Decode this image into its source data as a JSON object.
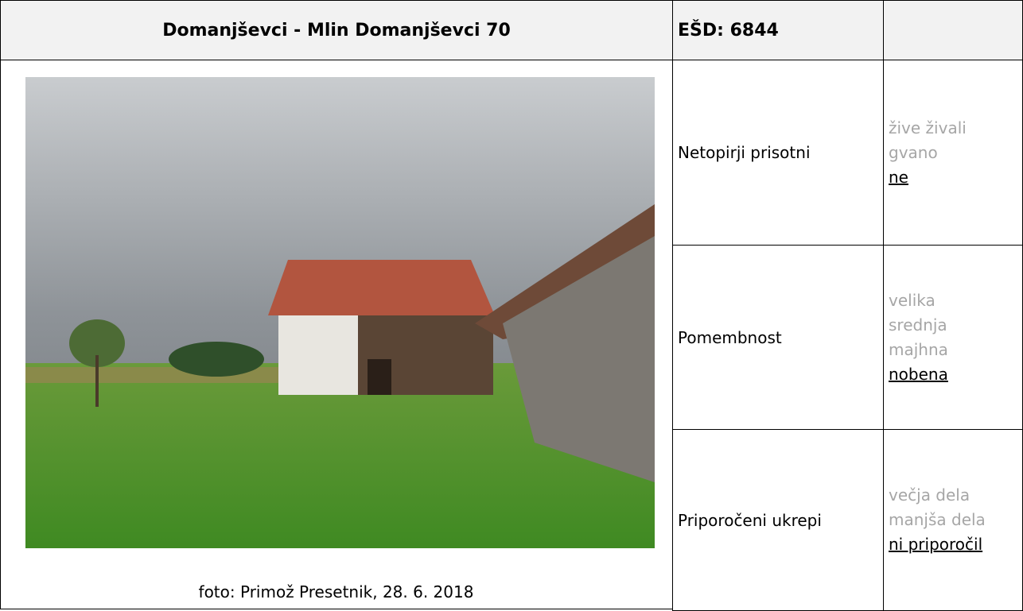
{
  "header": {
    "title": "Domanjševci - Mlin Domanjševci 70",
    "code": "EŠD: 6844"
  },
  "photo": {
    "caption": "foto: Primož Presetnik, 28. 6. 2018"
  },
  "rows": [
    {
      "label": "Netopirji prisotni",
      "options": [
        "žive živali",
        "gvano",
        "ne"
      ],
      "selected": 2
    },
    {
      "label": "Pomembnost",
      "options": [
        "velika",
        "srednja",
        "majhna",
        "nobena"
      ],
      "selected": 3
    },
    {
      "label": "Priporočeni ukrepi",
      "options": [
        "večja dela",
        "manjša dela",
        "ni priporočil"
      ],
      "selected": 2
    }
  ]
}
